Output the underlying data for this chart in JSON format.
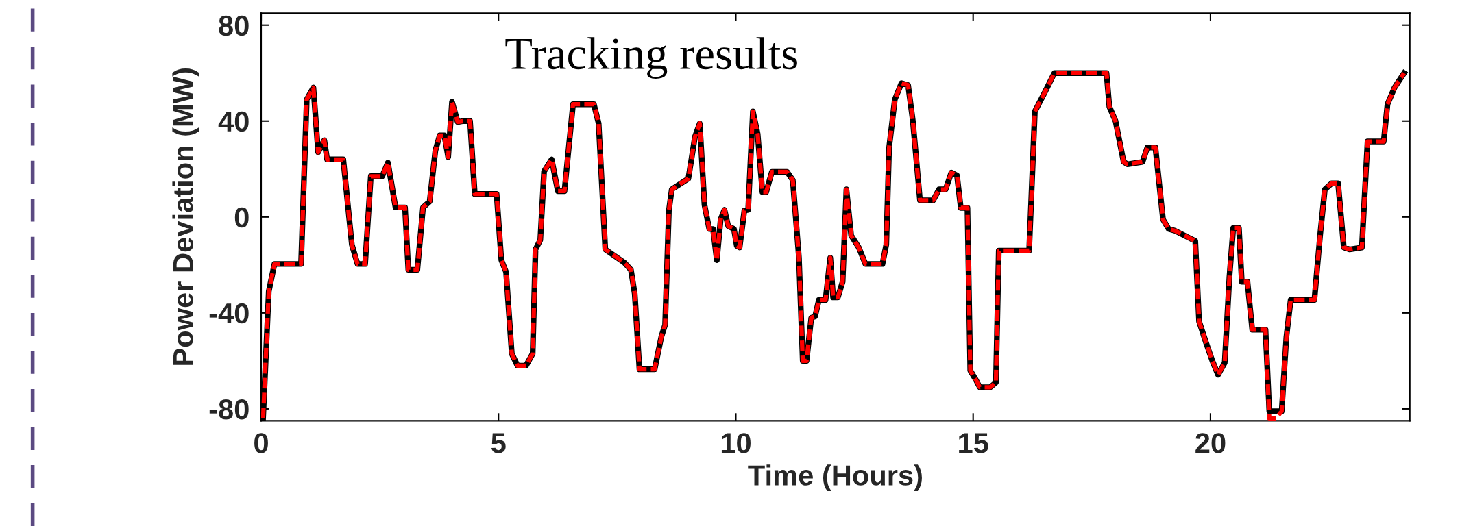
{
  "chart_data": {
    "type": "line",
    "xlabel": "Time (Hours)",
    "ylabel": "Power Deviation (MW)",
    "annotations": [
      "Tracking results"
    ],
    "xlim": [
      0,
      24.2
    ],
    "ylim": [
      -85,
      85
    ],
    "xticks": [
      0,
      5,
      10,
      15,
      20
    ],
    "yticks": [
      -80,
      -40,
      0,
      40,
      80
    ],
    "grid": false,
    "marker": "none",
    "x": [
      0.04,
      0.16,
      0.28,
      0.84,
      0.96,
      1.1,
      1.2,
      1.33,
      1.39,
      1.73,
      1.91,
      2.03,
      2.19,
      2.31,
      2.55,
      2.67,
      2.83,
      3.03,
      3.1,
      3.29,
      3.41,
      3.55,
      3.67,
      3.76,
      3.86,
      3.94,
      4.02,
      4.14,
      4.26,
      4.4,
      4.5,
      4.96,
      5.06,
      5.16,
      5.28,
      5.4,
      5.58,
      5.72,
      5.78,
      5.88,
      5.96,
      6.12,
      6.25,
      6.39,
      6.57,
      7.01,
      7.11,
      7.25,
      7.65,
      7.79,
      7.87,
      7.97,
      8.29,
      8.43,
      8.51,
      8.59,
      8.65,
      9.0,
      9.14,
      9.24,
      9.34,
      9.44,
      9.52,
      9.6,
      9.68,
      9.76,
      9.84,
      9.96,
      10.02,
      10.08,
      10.18,
      10.26,
      10.36,
      10.46,
      10.56,
      10.64,
      10.76,
      11.08,
      11.2,
      11.33,
      11.41,
      11.49,
      11.59,
      11.67,
      11.75,
      11.89,
      11.99,
      12.05,
      12.15,
      12.25,
      12.33,
      12.43,
      12.59,
      12.73,
      13.09,
      13.17,
      13.23,
      13.35,
      13.49,
      13.63,
      13.73,
      13.88,
      14.16,
      14.28,
      14.42,
      14.54,
      14.66,
      14.74,
      14.88,
      14.94,
      15.06,
      15.14,
      15.36,
      15.48,
      15.54,
      16.18,
      16.3,
      16.51,
      16.71,
      17.81,
      17.87,
      18.0,
      18.17,
      18.25,
      18.57,
      18.67,
      18.84,
      19.0,
      19.12,
      19.26,
      19.56,
      19.68,
      19.76,
      19.9,
      20.04,
      20.16,
      20.3,
      20.4,
      20.48,
      20.6,
      20.66,
      20.78,
      20.88,
      21.16,
      21.24,
      21.38,
      21.5,
      21.6,
      21.69,
      22.19,
      22.31,
      22.41,
      22.55,
      22.69,
      22.81,
      22.93,
      23.19,
      23.31,
      23.65,
      23.73,
      23.88,
      24.08
    ],
    "series": [
      {
        "color": "#000000",
        "line_style": "solid",
        "values": [
          -84,
          -31,
          -19.6,
          -19.6,
          49,
          54,
          27,
          32,
          24,
          24,
          -11.5,
          -19.6,
          -19.6,
          17,
          17,
          22.7,
          4,
          4,
          -22,
          -22,
          4,
          6.5,
          27.7,
          34,
          34,
          25,
          48,
          39.6,
          40,
          40,
          9.6,
          9.6,
          -18,
          -23,
          -57,
          -62,
          -62,
          -57,
          -13.5,
          -9.6,
          19,
          24,
          10.8,
          10.8,
          47,
          47,
          39,
          -13.5,
          -19,
          -22,
          -32,
          -63.5,
          -63.5,
          -50,
          -45,
          2.7,
          11.5,
          16,
          33.5,
          39,
          5,
          -5,
          -5,
          -18,
          -1,
          3,
          -3.8,
          -5,
          -12,
          -12.7,
          2.7,
          3,
          44,
          34.6,
          10.4,
          10.4,
          18.8,
          18.8,
          15.4,
          -17,
          -60,
          -60,
          -42,
          -41.5,
          -34.6,
          -34.6,
          -17,
          -33.5,
          -33.5,
          -27,
          11.5,
          -7.7,
          -12.7,
          -19.6,
          -19.6,
          -11.5,
          29,
          49,
          55.8,
          55,
          40,
          7,
          7,
          11.5,
          11.5,
          18.5,
          17.3,
          3.8,
          3.8,
          -64,
          -68,
          -71,
          -71,
          -69,
          -14,
          -14,
          44,
          52,
          60,
          60,
          46,
          40,
          23,
          22,
          23,
          29,
          29,
          -1,
          -5,
          -5.8,
          -8.8,
          -10,
          -43.5,
          -52,
          -60,
          -65.8,
          -60.8,
          -25,
          -4.6,
          -4.6,
          -27,
          -27,
          -47,
          -47,
          -81,
          -81,
          -81,
          -50,
          -34.6,
          -34.6,
          -7.7,
          11.5,
          14,
          14,
          -12.7,
          -13.5,
          -12.7,
          31.5,
          31.5,
          47,
          54,
          60
        ]
      },
      {
        "color": "#ff0000",
        "line_style": "dashed",
        "values": [
          -84,
          -31,
          -19.6,
          -19.6,
          49,
          54,
          27,
          32,
          24,
          24,
          -11.5,
          -19.6,
          -19.6,
          17,
          17,
          22.7,
          4,
          4,
          -22,
          -22,
          4,
          6.5,
          27.7,
          34,
          34,
          25,
          48,
          39.6,
          40,
          40,
          9.6,
          9.6,
          -18,
          -23,
          -57,
          -62,
          -62,
          -57,
          -13.5,
          -9.6,
          19,
          24,
          10.8,
          10.8,
          47,
          47,
          39,
          -13.5,
          -19,
          -22,
          -32,
          -63.5,
          -63.5,
          -50,
          -45,
          2.7,
          11.5,
          16,
          33.5,
          39,
          5,
          -5,
          -5,
          -18,
          -1,
          3,
          -3.8,
          -5,
          -12,
          -12.7,
          2.7,
          3,
          44,
          34.6,
          10.4,
          10.4,
          18.8,
          18.8,
          15.4,
          -17,
          -60,
          -60,
          -42,
          -41.5,
          -34.6,
          -34.6,
          -17,
          -33.5,
          -33.5,
          -27,
          11.5,
          -7.7,
          -12.7,
          -19.6,
          -19.6,
          -11.5,
          29,
          49,
          55.8,
          55,
          40,
          7,
          7,
          11.5,
          11.5,
          18.5,
          17.3,
          3.8,
          3.8,
          -64,
          -68,
          -71,
          -71,
          -69,
          -14,
          -14,
          44,
          52,
          60,
          60,
          46,
          40,
          23,
          22,
          23,
          29,
          29,
          -1,
          -5,
          -5.8,
          -8.8,
          -10,
          -43.5,
          -52,
          -60,
          -65.8,
          -60.8,
          -25,
          -4.6,
          -4.6,
          -27,
          -27,
          -47,
          -47,
          -84,
          -84,
          -81,
          -50,
          -34.6,
          -34.6,
          -7.7,
          11.5,
          14,
          14,
          -12.7,
          -13.5,
          -12.7,
          31.5,
          31.5,
          47,
          54,
          60
        ]
      }
    ]
  }
}
